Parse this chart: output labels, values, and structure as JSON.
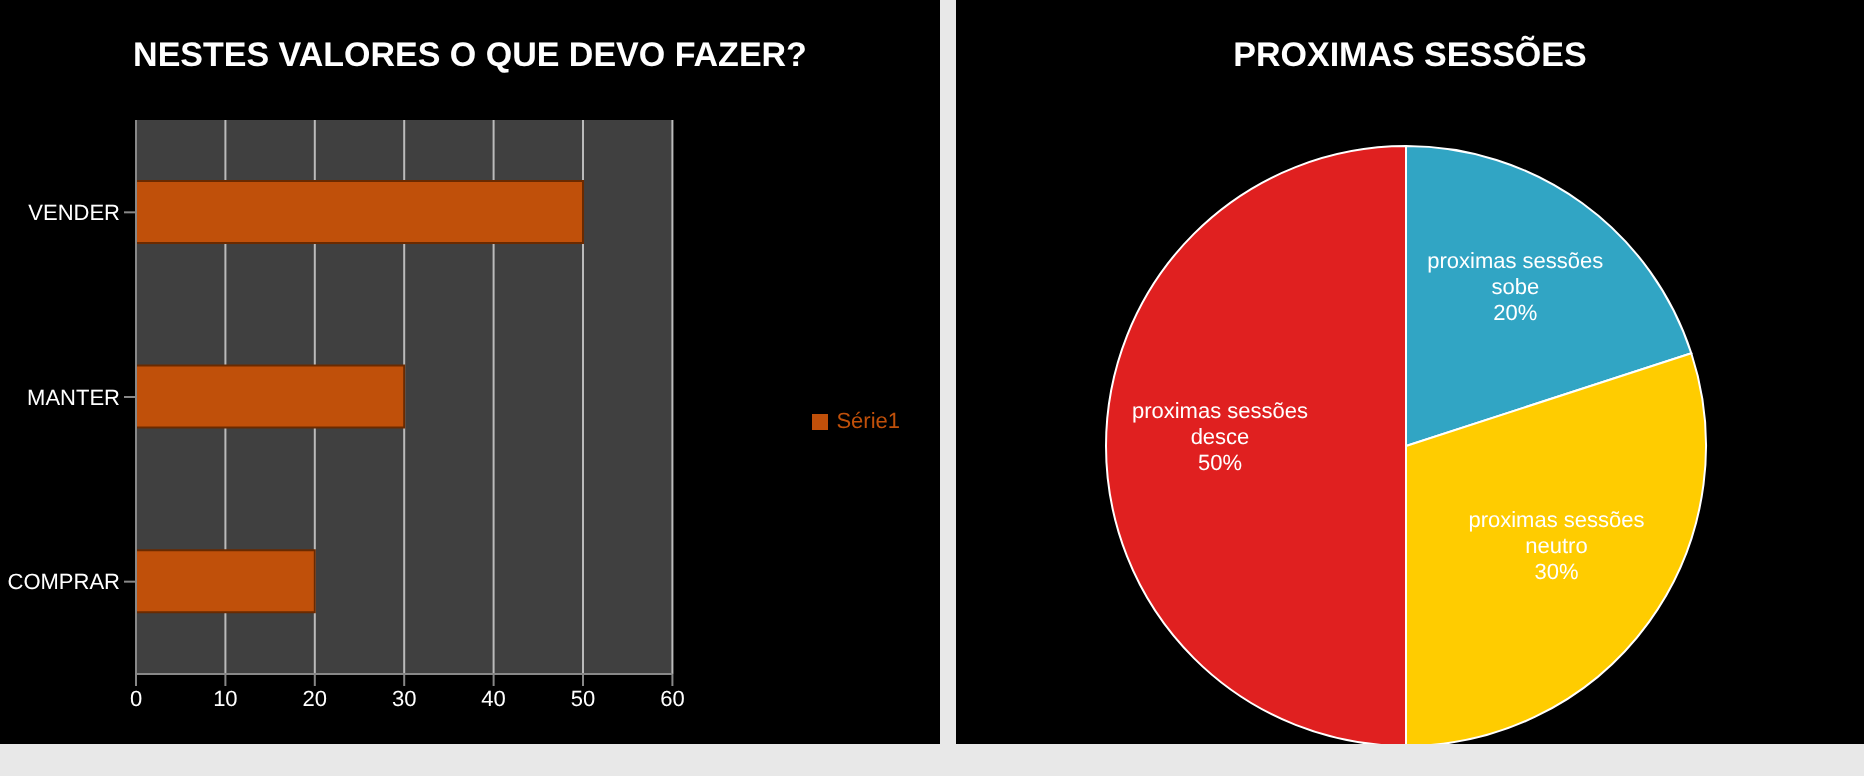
{
  "chart_data": [
    {
      "type": "bar",
      "title": "NESTES VALORES O QUE DEVO FAZER?",
      "orientation": "horizontal",
      "categories": [
        "VENDER",
        "MANTER",
        "COMPRAR"
      ],
      "series": [
        {
          "name": "Série1",
          "color": "#c0500a",
          "values": [
            50,
            30,
            20
          ]
        }
      ],
      "xlim": [
        0,
        60
      ],
      "xticks": [
        0,
        10,
        20,
        30,
        40,
        50,
        60
      ],
      "grid": "x",
      "legend": "right"
    },
    {
      "type": "pie",
      "title": "PROXIMAS SESSÕES",
      "categories": [
        "proximas sessões sobe",
        "proximas sessões neutro",
        "proximas sessões desce"
      ],
      "values": [
        20,
        30,
        50
      ],
      "value_labels": [
        "20%",
        "30%",
        "50%"
      ],
      "colors": [
        "#31a5c4",
        "#ffcc00",
        "#e02020"
      ]
    }
  ]
}
